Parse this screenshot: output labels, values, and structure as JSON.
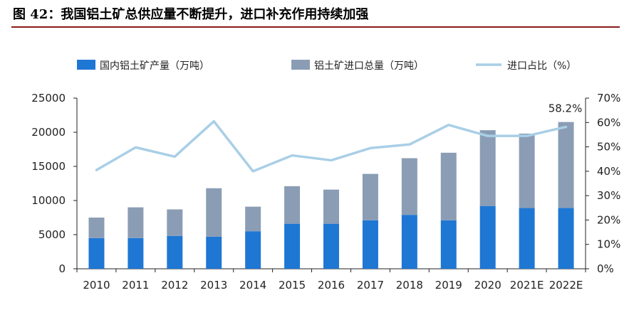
{
  "figure": {
    "title": "图 42：我国铝土矿总供应量不断提升，进口补充作用持续加强"
  },
  "colors": {
    "domestic": "#1f77d4",
    "imports": "#8a9db5",
    "ratio_line": "#a9cfe6",
    "axis": "#222222",
    "title_rule": "#8b1a1a"
  },
  "chart_data": {
    "type": "bar",
    "stacked": true,
    "categories": [
      "2010",
      "2011",
      "2012",
      "2013",
      "2014",
      "2015",
      "2016",
      "2017",
      "2018",
      "2019",
      "2020",
      "2021E",
      "2022E"
    ],
    "series": [
      {
        "name": "国内铝土矿产量（万吨）",
        "type": "bar",
        "axis": "left",
        "values": [
          4500,
          4500,
          4800,
          4700,
          5500,
          6600,
          6600,
          7100,
          7900,
          7100,
          9200,
          8900,
          8900
        ]
      },
      {
        "name": "铝土矿进口总量（万吨）",
        "type": "bar",
        "axis": "left",
        "values": [
          3000,
          4500,
          3900,
          7100,
          3600,
          5500,
          5000,
          6800,
          8300,
          9900,
          11100,
          10900,
          12600
        ]
      },
      {
        "name": "进口占比（%）",
        "type": "line",
        "axis": "right",
        "values": [
          40.5,
          49.8,
          46.0,
          60.5,
          40.0,
          46.5,
          44.5,
          49.5,
          51.0,
          59.0,
          54.5,
          54.5,
          58.2
        ]
      }
    ],
    "annotations": [
      {
        "category": "2022E",
        "series": "进口占比（%）",
        "label": "58.2%"
      }
    ],
    "yaxis_left": {
      "min": 0,
      "max": 25000,
      "ticks": [
        0,
        5000,
        10000,
        15000,
        20000,
        25000
      ]
    },
    "yaxis_right": {
      "min": 0,
      "max": 70,
      "ticks": [
        "0%",
        "10%",
        "20%",
        "30%",
        "40%",
        "50%",
        "60%",
        "70%"
      ]
    },
    "legend": "top",
    "grid": false
  }
}
